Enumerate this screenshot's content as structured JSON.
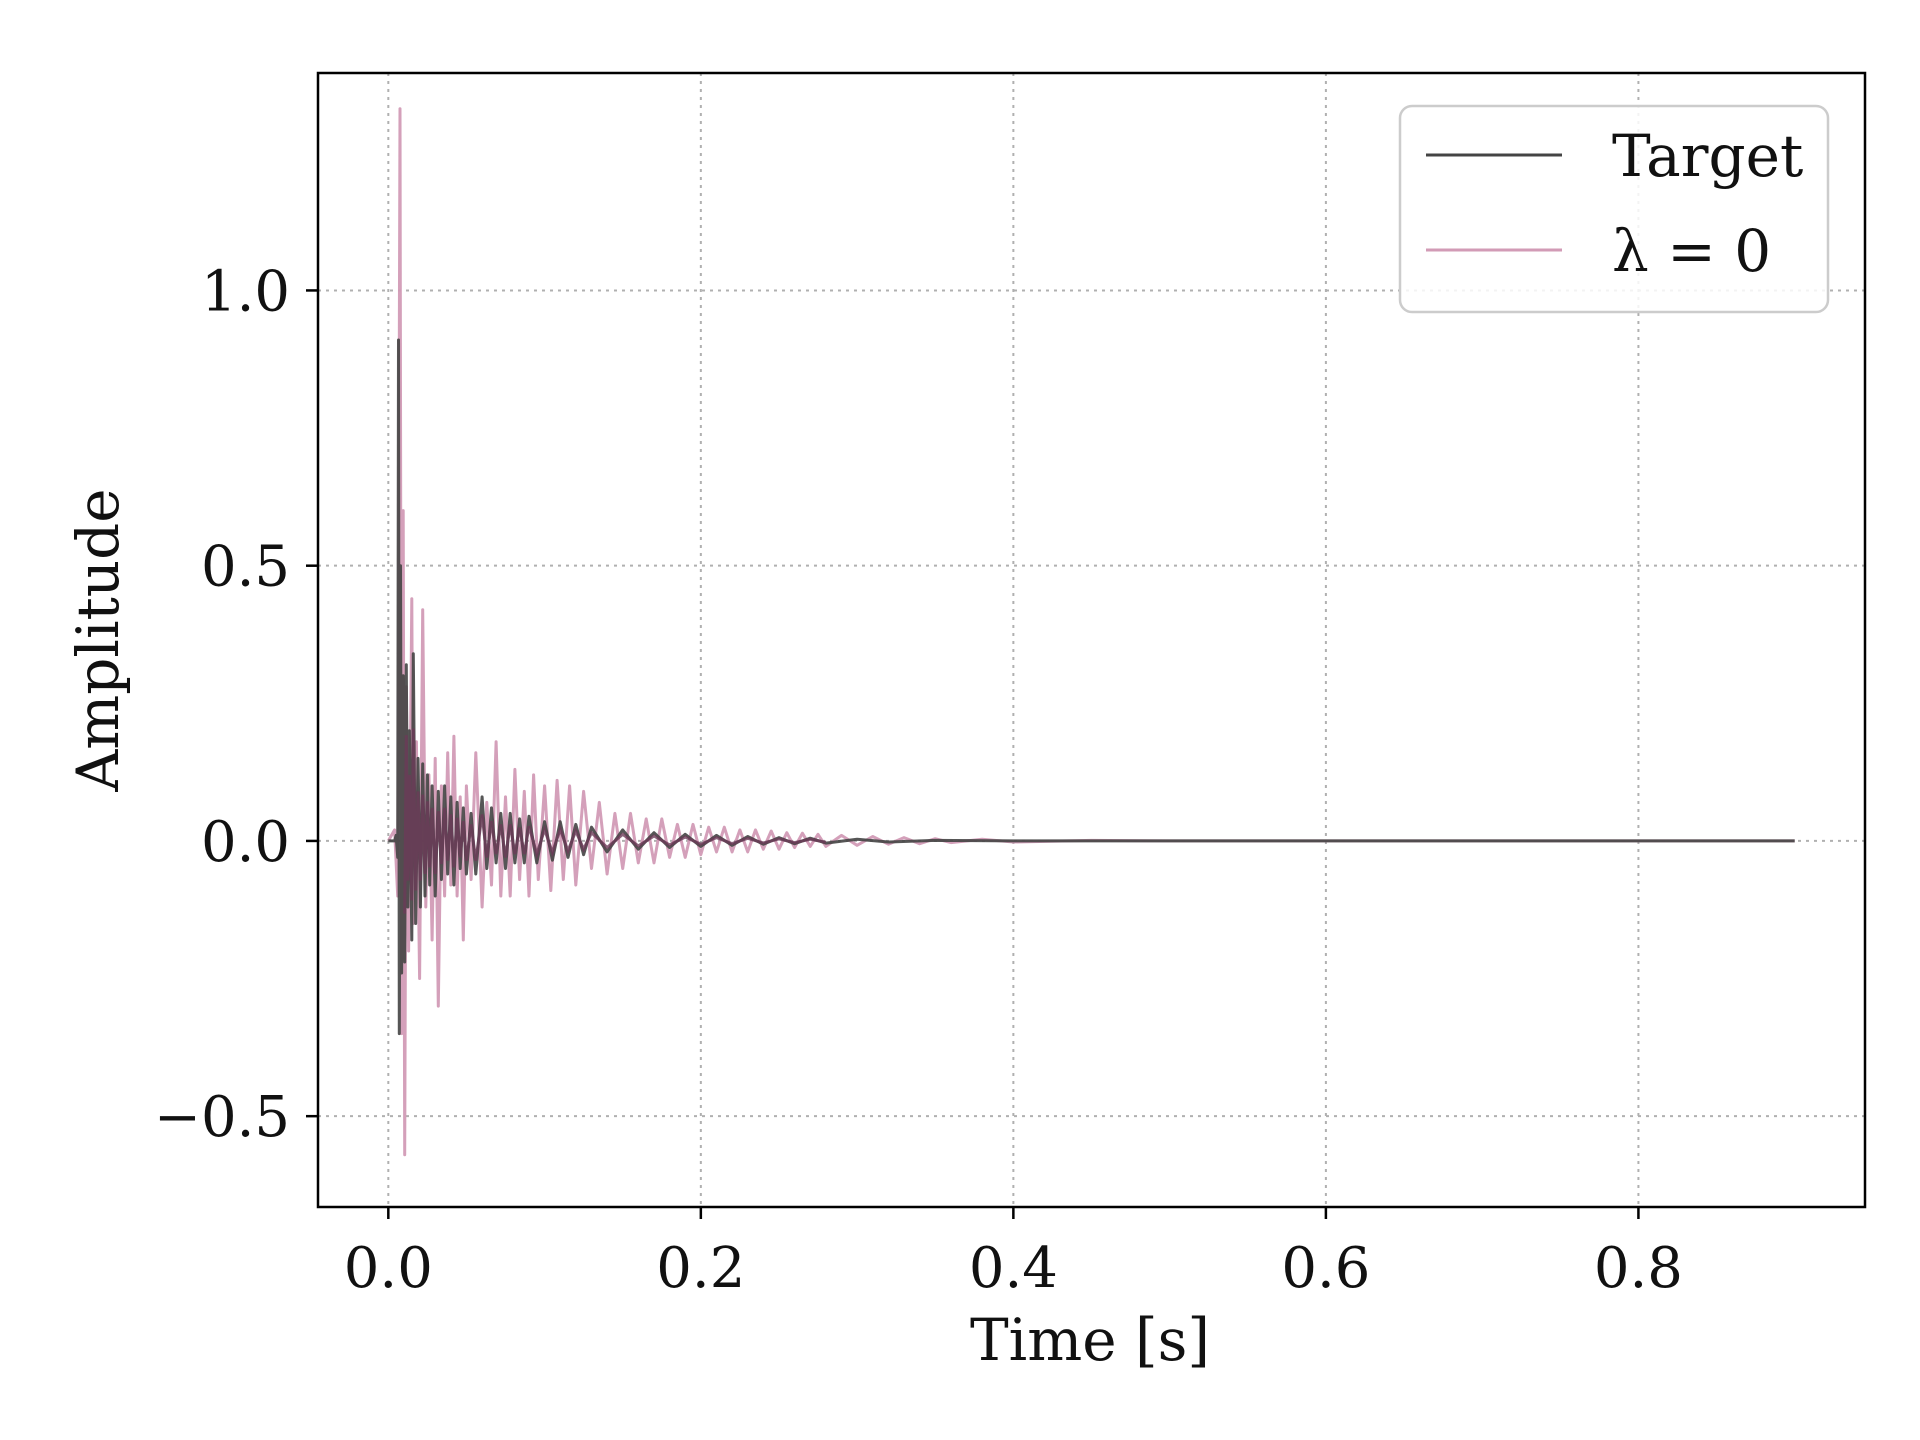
{
  "chart_data": {
    "type": "line",
    "title": "",
    "xlabel": "Time [s]",
    "ylabel": "Amplitude",
    "xlim": [
      -0.045,
      0.945
    ],
    "ylim": [
      -0.665,
      1.395
    ],
    "xticks": [
      0.0,
      0.2,
      0.4,
      0.6,
      0.8
    ],
    "xtick_labels": [
      "0.0",
      "0.2",
      "0.4",
      "0.6",
      "0.8"
    ],
    "yticks": [
      -0.5,
      0.0,
      0.5,
      1.0
    ],
    "ytick_labels": [
      "−0.5",
      "0.0",
      "0.5",
      "1.0"
    ],
    "grid": true,
    "legend_position": "top-right",
    "series": [
      {
        "name": "λ = 0",
        "color": "#d29bb6",
        "points": [
          [
            0.0,
            0.0
          ],
          [
            0.004,
            0.02
          ],
          [
            0.006,
            -0.1
          ],
          [
            0.0075,
            1.33
          ],
          [
            0.0085,
            -0.35
          ],
          [
            0.0095,
            0.6
          ],
          [
            0.0105,
            -0.57
          ],
          [
            0.0115,
            0.28
          ],
          [
            0.013,
            -0.2
          ],
          [
            0.015,
            0.44
          ],
          [
            0.016,
            -0.15
          ],
          [
            0.018,
            0.18
          ],
          [
            0.02,
            -0.25
          ],
          [
            0.022,
            0.42
          ],
          [
            0.024,
            -0.12
          ],
          [
            0.026,
            0.12
          ],
          [
            0.028,
            -0.18
          ],
          [
            0.03,
            0.15
          ],
          [
            0.032,
            -0.3
          ],
          [
            0.034,
            0.1
          ],
          [
            0.036,
            -0.1
          ],
          [
            0.038,
            0.16
          ],
          [
            0.04,
            -0.08
          ],
          [
            0.042,
            0.19
          ],
          [
            0.044,
            -0.1
          ],
          [
            0.046,
            0.08
          ],
          [
            0.048,
            -0.18
          ],
          [
            0.05,
            0.1
          ],
          [
            0.053,
            -0.07
          ],
          [
            0.056,
            0.16
          ],
          [
            0.06,
            -0.12
          ],
          [
            0.063,
            0.07
          ],
          [
            0.066,
            -0.08
          ],
          [
            0.069,
            0.18
          ],
          [
            0.072,
            -0.1
          ],
          [
            0.075,
            0.08
          ],
          [
            0.078,
            -0.1
          ],
          [
            0.081,
            0.13
          ],
          [
            0.084,
            -0.07
          ],
          [
            0.087,
            0.09
          ],
          [
            0.09,
            -0.1
          ],
          [
            0.093,
            0.12
          ],
          [
            0.096,
            -0.07
          ],
          [
            0.1,
            0.1
          ],
          [
            0.104,
            -0.09
          ],
          [
            0.108,
            0.11
          ],
          [
            0.112,
            -0.07
          ],
          [
            0.116,
            0.1
          ],
          [
            0.12,
            -0.08
          ],
          [
            0.125,
            0.09
          ],
          [
            0.13,
            -0.05
          ],
          [
            0.135,
            0.07
          ],
          [
            0.14,
            -0.06
          ],
          [
            0.145,
            0.05
          ],
          [
            0.15,
            -0.05
          ],
          [
            0.155,
            0.05
          ],
          [
            0.16,
            -0.04
          ],
          [
            0.165,
            0.04
          ],
          [
            0.17,
            -0.04
          ],
          [
            0.175,
            0.04
          ],
          [
            0.18,
            -0.03
          ],
          [
            0.185,
            0.03
          ],
          [
            0.19,
            -0.03
          ],
          [
            0.195,
            0.03
          ],
          [
            0.2,
            -0.025
          ],
          [
            0.205,
            0.025
          ],
          [
            0.21,
            -0.02
          ],
          [
            0.215,
            0.025
          ],
          [
            0.22,
            -0.02
          ],
          [
            0.225,
            0.02
          ],
          [
            0.23,
            -0.02
          ],
          [
            0.235,
            0.02
          ],
          [
            0.24,
            -0.015
          ],
          [
            0.245,
            0.018
          ],
          [
            0.25,
            -0.015
          ],
          [
            0.255,
            0.015
          ],
          [
            0.26,
            -0.012
          ],
          [
            0.265,
            0.014
          ],
          [
            0.27,
            -0.01
          ],
          [
            0.275,
            0.012
          ],
          [
            0.28,
            -0.01
          ],
          [
            0.29,
            0.01
          ],
          [
            0.3,
            -0.008
          ],
          [
            0.31,
            0.008
          ],
          [
            0.32,
            -0.006
          ],
          [
            0.33,
            0.006
          ],
          [
            0.34,
            -0.005
          ],
          [
            0.35,
            0.004
          ],
          [
            0.36,
            -0.003
          ],
          [
            0.38,
            0.003
          ],
          [
            0.4,
            -0.002
          ],
          [
            0.45,
            0.001
          ],
          [
            0.5,
            0.0
          ],
          [
            0.6,
            0.0
          ],
          [
            0.7,
            0.0
          ],
          [
            0.8,
            0.0
          ],
          [
            0.9,
            0.0
          ]
        ]
      },
      {
        "name": "Target",
        "color": "#444444",
        "points": [
          [
            0.0,
            0.0
          ],
          [
            0.004,
            0.0
          ],
          [
            0.005,
            0.01
          ],
          [
            0.006,
            -0.03
          ],
          [
            0.0065,
            0.91
          ],
          [
            0.007,
            -0.35
          ],
          [
            0.0078,
            0.5
          ],
          [
            0.0085,
            -0.24
          ],
          [
            0.0095,
            0.3
          ],
          [
            0.0105,
            -0.22
          ],
          [
            0.0115,
            0.32
          ],
          [
            0.0125,
            -0.12
          ],
          [
            0.0135,
            0.2
          ],
          [
            0.015,
            -0.18
          ],
          [
            0.016,
            0.34
          ],
          [
            0.0175,
            -0.15
          ],
          [
            0.019,
            0.15
          ],
          [
            0.0205,
            -0.12
          ],
          [
            0.022,
            0.14
          ],
          [
            0.0235,
            -0.1
          ],
          [
            0.025,
            0.12
          ],
          [
            0.0265,
            -0.08
          ],
          [
            0.028,
            0.1
          ],
          [
            0.03,
            -0.1
          ],
          [
            0.032,
            0.09
          ],
          [
            0.034,
            -0.07
          ],
          [
            0.036,
            0.1
          ],
          [
            0.038,
            -0.06
          ],
          [
            0.04,
            0.08
          ],
          [
            0.042,
            -0.08
          ],
          [
            0.044,
            0.07
          ],
          [
            0.046,
            -0.05
          ],
          [
            0.048,
            0.06
          ],
          [
            0.05,
            -0.06
          ],
          [
            0.053,
            0.05
          ],
          [
            0.056,
            -0.06
          ],
          [
            0.06,
            0.08
          ],
          [
            0.063,
            -0.05
          ],
          [
            0.066,
            0.06
          ],
          [
            0.069,
            -0.04
          ],
          [
            0.072,
            0.05
          ],
          [
            0.075,
            -0.05
          ],
          [
            0.078,
            0.05
          ],
          [
            0.081,
            -0.04
          ],
          [
            0.084,
            0.04
          ],
          [
            0.087,
            -0.04
          ],
          [
            0.09,
            0.045
          ],
          [
            0.095,
            -0.04
          ],
          [
            0.1,
            0.035
          ],
          [
            0.105,
            -0.035
          ],
          [
            0.11,
            0.035
          ],
          [
            0.115,
            -0.03
          ],
          [
            0.12,
            0.03
          ],
          [
            0.125,
            -0.025
          ],
          [
            0.13,
            0.025
          ],
          [
            0.14,
            -0.02
          ],
          [
            0.15,
            0.02
          ],
          [
            0.16,
            -0.015
          ],
          [
            0.17,
            0.015
          ],
          [
            0.18,
            -0.012
          ],
          [
            0.19,
            0.012
          ],
          [
            0.2,
            -0.01
          ],
          [
            0.21,
            0.01
          ],
          [
            0.22,
            -0.008
          ],
          [
            0.23,
            0.008
          ],
          [
            0.24,
            -0.006
          ],
          [
            0.25,
            0.006
          ],
          [
            0.26,
            -0.005
          ],
          [
            0.27,
            0.005
          ],
          [
            0.28,
            -0.004
          ],
          [
            0.3,
            0.003
          ],
          [
            0.32,
            -0.002
          ],
          [
            0.35,
            0.001
          ],
          [
            0.4,
            0.0
          ],
          [
            0.5,
            0.0
          ],
          [
            0.6,
            0.0
          ],
          [
            0.7,
            0.0
          ],
          [
            0.8,
            0.0
          ],
          [
            0.9,
            0.0
          ]
        ]
      }
    ]
  },
  "legend": {
    "items": [
      {
        "label": "Target",
        "color": "#444444"
      },
      {
        "label": "λ = 0",
        "color": "#d29bb6"
      }
    ]
  },
  "colors": {
    "overlap": "#6c3b58",
    "grid": "#b0b0b0",
    "frame": "#000000"
  }
}
